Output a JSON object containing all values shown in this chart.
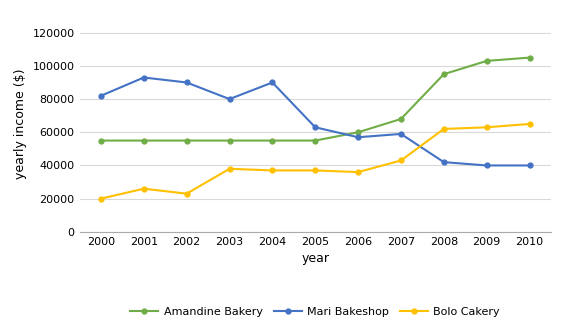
{
  "years": [
    2000,
    2001,
    2002,
    2003,
    2004,
    2005,
    2006,
    2007,
    2008,
    2009,
    2010
  ],
  "amandine": [
    55000,
    55000,
    55000,
    55000,
    55000,
    55000,
    60000,
    68000,
    95000,
    103000,
    105000
  ],
  "mari": [
    82000,
    93000,
    90000,
    80000,
    90000,
    63000,
    57000,
    59000,
    42000,
    40000,
    40000
  ],
  "bolo": [
    20000,
    26000,
    23000,
    38000,
    37000,
    37000,
    36000,
    43000,
    62000,
    63000,
    65000
  ],
  "amandine_color": "#70ad47",
  "mari_color": "#4472c4",
  "bolo_color": "#ffc000",
  "amandine_label": "Amandine Bakery",
  "mari_label": "Mari Bakeshop",
  "bolo_label": "Bolo Cakery",
  "xlabel": "year",
  "ylabel": "yearly income ($)",
  "ylim": [
    0,
    130000
  ],
  "yticks": [
    0,
    20000,
    40000,
    60000,
    80000,
    100000,
    120000
  ],
  "yticklabels": [
    "0",
    "20000",
    "40000",
    "60000",
    "80000",
    "100000",
    "120000"
  ],
  "background_color": "#ffffff"
}
